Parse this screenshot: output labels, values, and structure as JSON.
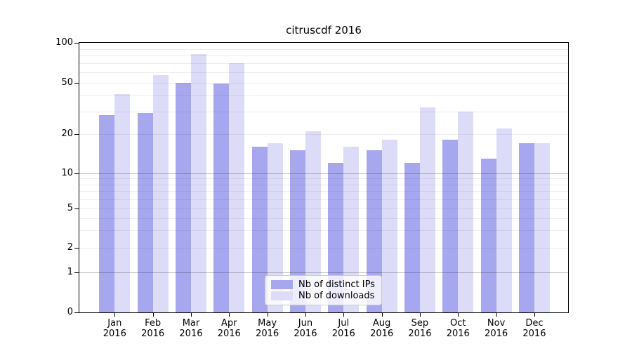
{
  "chart_data": {
    "type": "bar",
    "title": "citruscdf 2016",
    "categories": [
      "Jan",
      "Feb",
      "Mar",
      "Apr",
      "May",
      "Jun",
      "Jul",
      "Aug",
      "Sep",
      "Oct",
      "Nov",
      "Dec"
    ],
    "category_year_suffix": "2016",
    "series": [
      {
        "name": "Nb of distinct IPs",
        "color": "#a7a7f0",
        "values": [
          28,
          29,
          50,
          49,
          16,
          15,
          12,
          15,
          12,
          18,
          13,
          17
        ]
      },
      {
        "name": "Nb of downloads",
        "color": "#dcdcf8",
        "values": [
          41,
          57,
          82,
          70,
          17,
          21,
          16,
          18,
          32,
          30,
          22,
          17
        ]
      }
    ],
    "xlabel": "",
    "ylabel": "",
    "y_tick_labels": [
      "100",
      "50",
      "20",
      "10",
      "5",
      "2",
      "1",
      "0"
    ],
    "ylim": [
      0,
      100
    ],
    "yscale": "symlog",
    "grid": true,
    "legend_position": "lower center"
  }
}
